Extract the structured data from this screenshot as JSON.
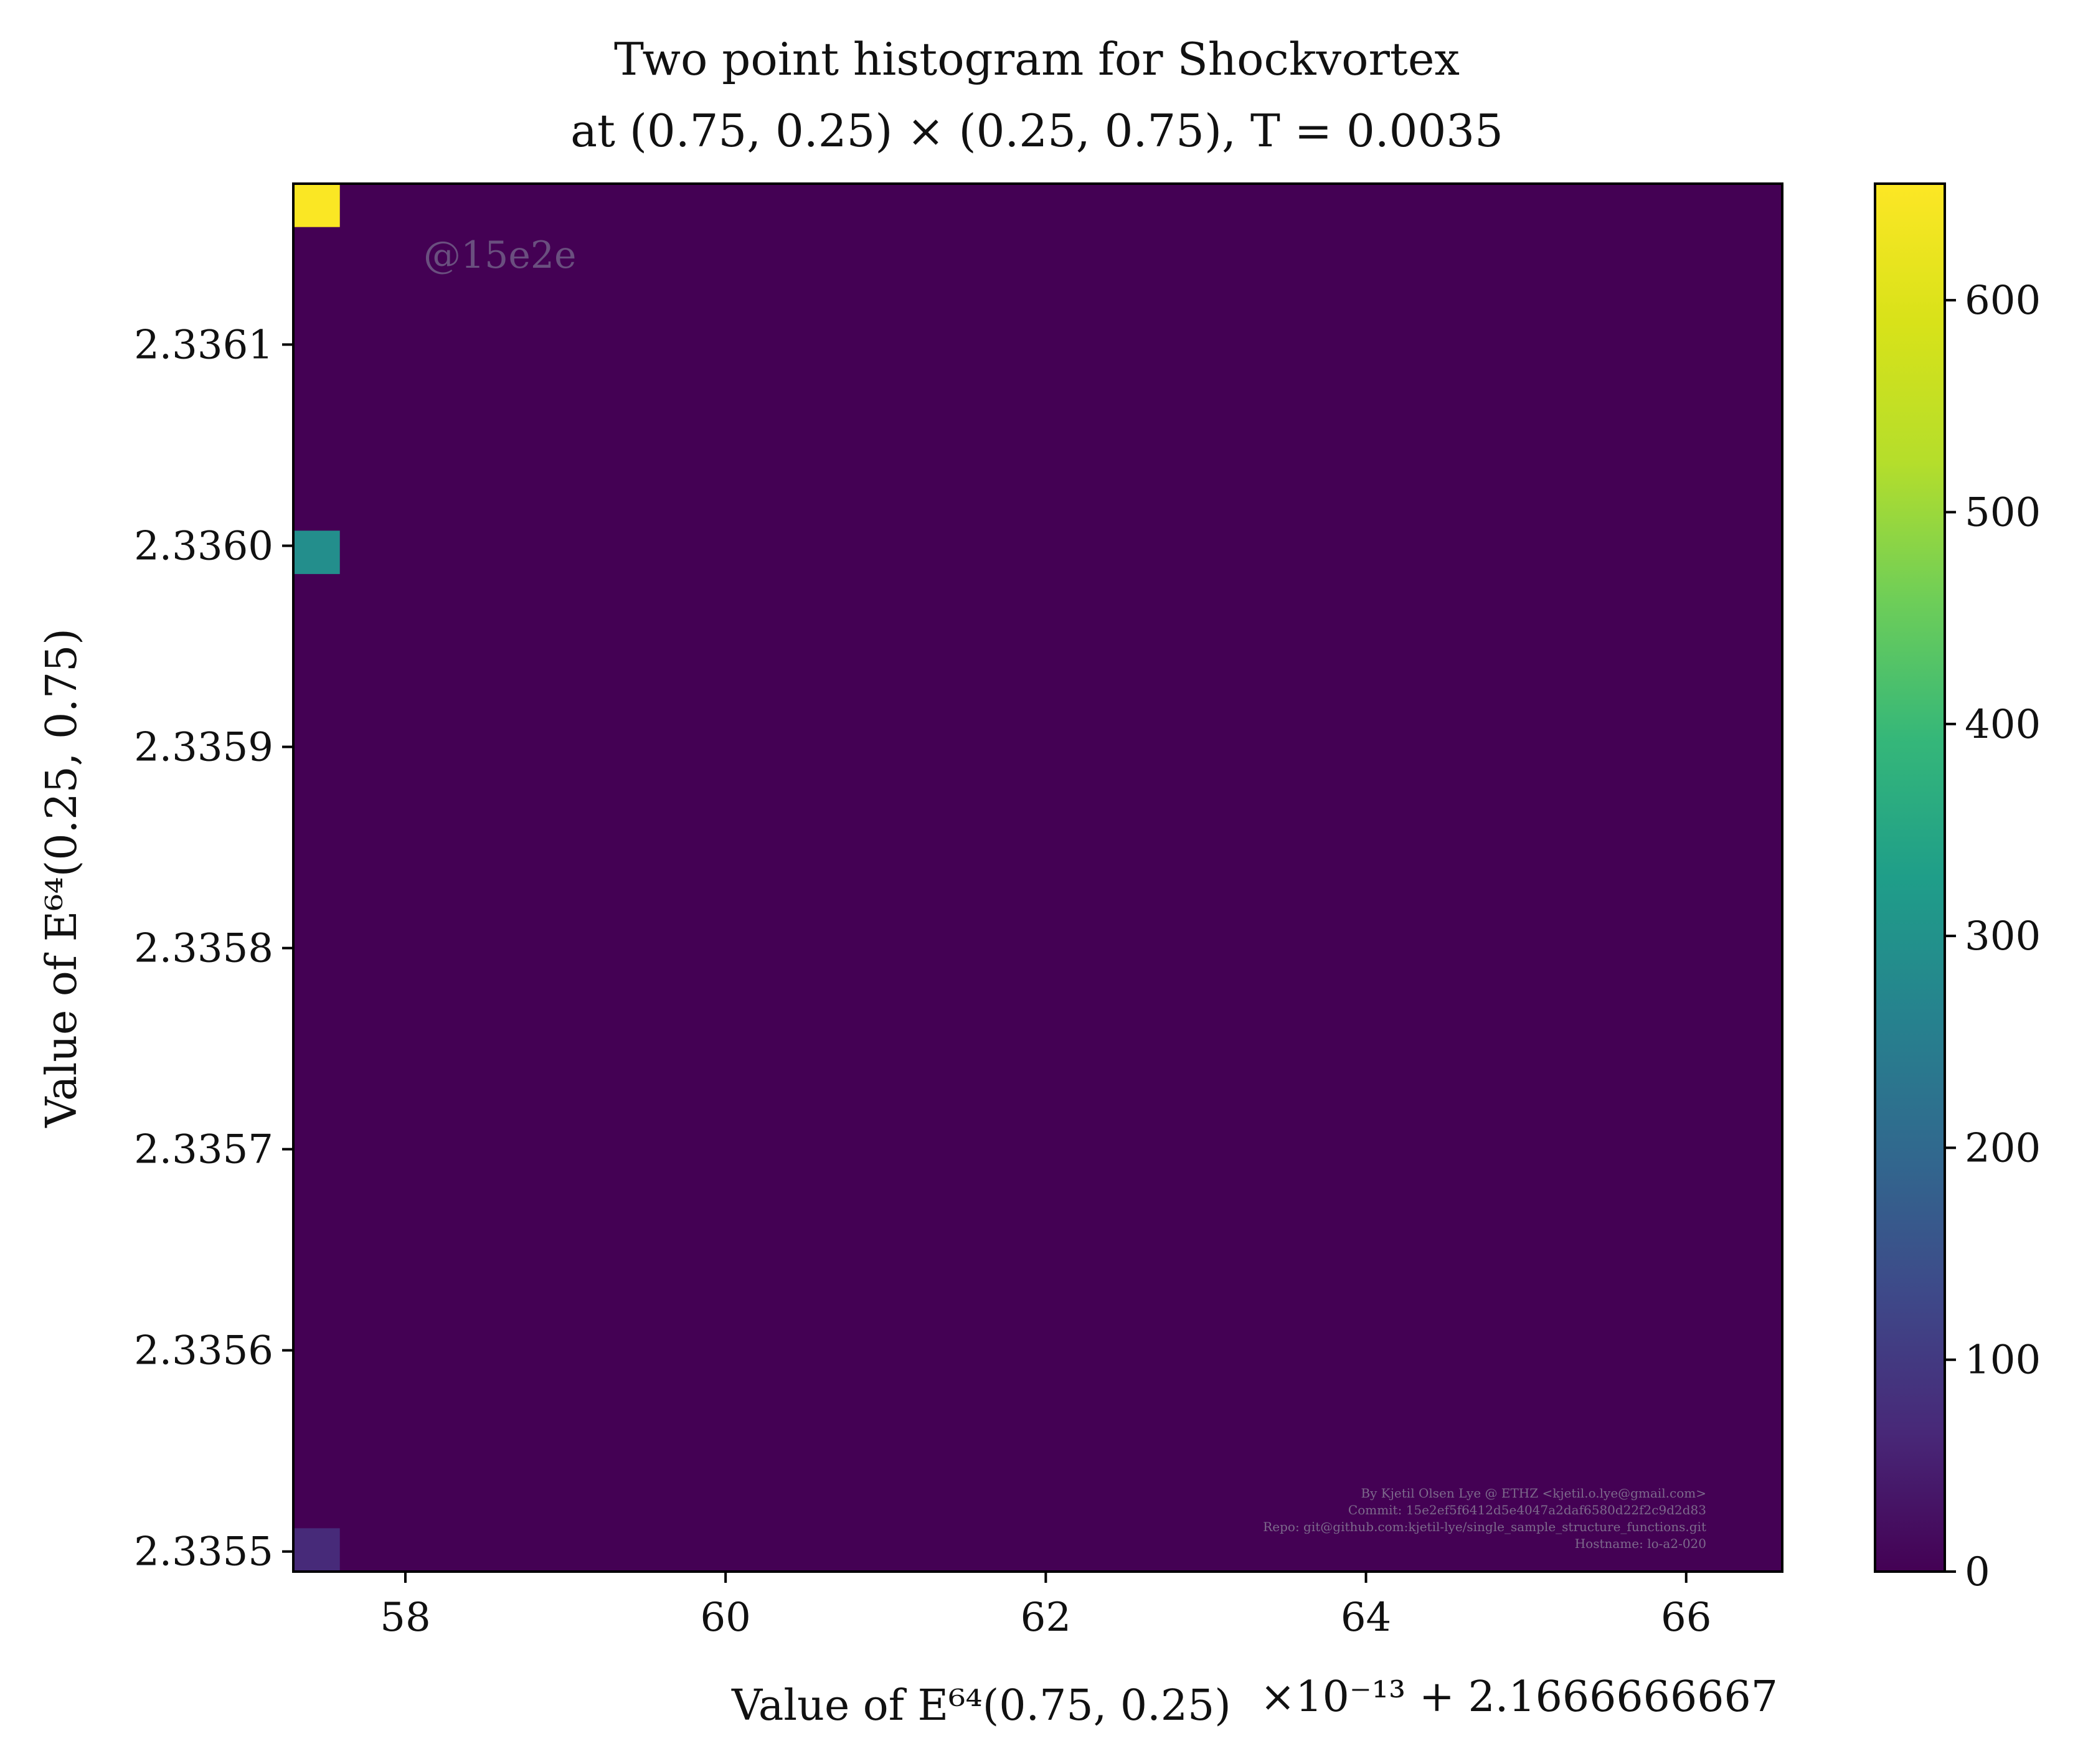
{
  "chart_data": {
    "type": "heatmap",
    "title_line1": "Two point histogram for Shockvortex",
    "title_line2": "at (0.75, 0.25) × (0.25, 0.75), T = 0.0035",
    "xlabel": "Value of E⁶⁴(0.75, 0.25)",
    "ylabel": "Value of E⁶⁴(0.25, 0.75)",
    "x_offset_label": "×10⁻¹³ + 2.1666666667",
    "xlim": [
      57.3,
      66.6
    ],
    "ylim": [
      2.33549,
      2.33618
    ],
    "x_ticks": [
      58,
      60,
      62,
      64,
      66
    ],
    "x_tick_labels": [
      "58",
      "60",
      "62",
      "64",
      "66"
    ],
    "y_ticks": [
      2.3355,
      2.3356,
      2.3357,
      2.3358,
      2.3359,
      2.336,
      2.3361
    ],
    "y_tick_labels": [
      "2.3355",
      "2.3356",
      "2.3357",
      "2.3358",
      "2.3359",
      "2.3360",
      "2.3361"
    ],
    "bins": {
      "nx": 32,
      "ny": 32,
      "x_range": [
        57.3,
        66.6
      ],
      "y_range": [
        2.33549,
        2.33618
      ]
    },
    "cells": [
      {
        "i": 0,
        "j": 0,
        "count": 70
      },
      {
        "i": 0,
        "j": 23,
        "count": 290
      },
      {
        "i": 0,
        "j": 31,
        "count": 650
      }
    ],
    "colorbar": {
      "cmap": "viridis",
      "vmin": 0,
      "vmax": 655,
      "ticks": [
        0,
        100,
        200,
        300,
        400,
        500,
        600
      ],
      "tick_labels": [
        "0",
        "100",
        "200",
        "300",
        "400",
        "500",
        "600"
      ]
    },
    "background_color": "#440154",
    "grid": false
  },
  "watermark": "@15e2e",
  "credits": [
    "By Kjetil Olsen Lye @ ETHZ <kjetil.o.lye@gmail.com>",
    "Commit: 15e2ef5f6412d5e4047a2daf6580d22f2c9d2d83",
    "Repo: git@github.com:kjetil-lye/single_sample_structure_functions.git",
    "Hostname: lo-a2-020"
  ]
}
